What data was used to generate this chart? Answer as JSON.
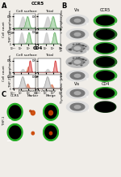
{
  "bg_color": "#f0ede8",
  "flow_green": "#5aaa5a",
  "flow_green_fill": "#aad4aa",
  "flow_gray": "#999999",
  "flow_gray_fill": "#cccccc",
  "flow_red": "#cc2222",
  "flow_red_fill": "#ee9999",
  "flow_orange_fill": "#dd7755",
  "cell_bg": "#000000",
  "cell_gray_outer": "#bbbbbb",
  "cell_gray_inner": "#888888",
  "cell_green_bright": "#44dd44",
  "cell_green_dim": "#225522",
  "cell_granular": "#aaaaaa",
  "section_labels": [
    "A",
    "B",
    "C"
  ],
  "panel_A_ccr5_title": "CCR5",
  "panel_A_cd4_title": "CD4",
  "panel_A_sublabels": [
    "Cell surface",
    "Total"
  ],
  "panel_A_rowlabels_ccr5": [
    "T lymphocytes",
    "THP-1"
  ],
  "panel_A_rowlabels_cd4": [
    "T lymphocytes",
    "THP-1"
  ],
  "panel_A_ylabel": "Cell count",
  "panel_A_xlabel": "Fluorescence Intensity",
  "panel_B_col_labels_top": [
    "Vis",
    "CCR5"
  ],
  "panel_B_row_labels": [
    "T lymphocytes",
    "THP-1",
    "Jurkat"
  ],
  "panel_B_col_labels_bot": [
    "Vis",
    "CD4"
  ],
  "panel_B_row_labels_bot": [
    "T lymphocytes"
  ],
  "panel_C_col_labels": [
    "CCR5",
    "Marker",
    "Merge"
  ],
  "panel_C_row_labels": [
    "THP-1"
  ]
}
